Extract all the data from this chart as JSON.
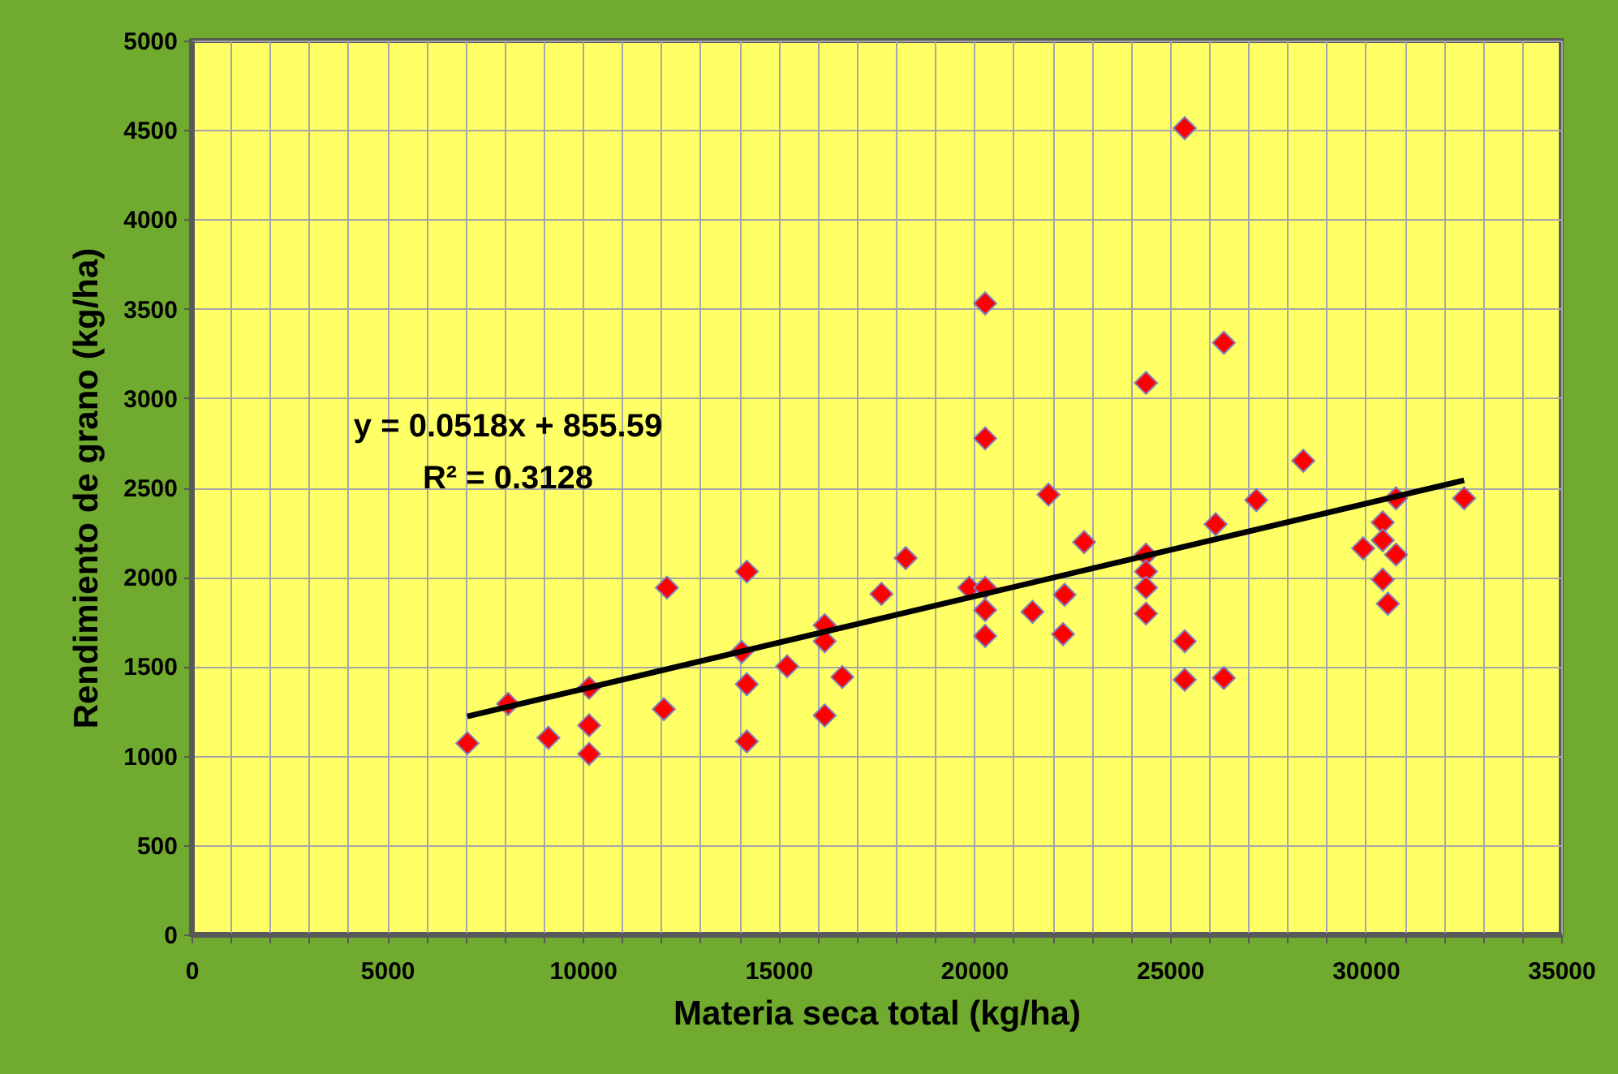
{
  "chart_data": {
    "type": "scatter",
    "xlabel": "Materia seca total (kg/ha)",
    "ylabel": "Rendimiento de grano (kg/ha)",
    "annotations": [
      "y = 0.0518x + 855.59",
      "R² = 0.3128"
    ],
    "xlim": [
      0,
      35000
    ],
    "ylim": [
      0,
      5000
    ],
    "xticks": [
      0,
      {
        "value": 1000,
        "label": null
      },
      {
        "value": 2000,
        "label": null
      },
      {
        "value": 3000,
        "label": null
      },
      {
        "value": 4000,
        "label": null
      },
      5000,
      {
        "value": 6000,
        "label": null
      },
      {
        "value": 7000,
        "label": null
      },
      {
        "value": 8000,
        "label": null
      },
      {
        "value": 9000,
        "label": null
      },
      10000,
      {
        "value": 11000,
        "label": null
      },
      {
        "value": 12000,
        "label": null
      },
      {
        "value": 13000,
        "label": null
      },
      {
        "value": 14000,
        "label": null
      },
      15000,
      {
        "value": 16000,
        "label": null
      },
      {
        "value": 17000,
        "label": null
      },
      {
        "value": 18000,
        "label": null
      },
      {
        "value": 19000,
        "label": null
      },
      20000,
      {
        "value": 21000,
        "label": null
      },
      {
        "value": 22000,
        "label": null
      },
      {
        "value": 23000,
        "label": null
      },
      {
        "value": 24000,
        "label": null
      },
      25000,
      {
        "value": 26000,
        "label": null
      },
      {
        "value": 27000,
        "label": null
      },
      {
        "value": 28000,
        "label": null
      },
      {
        "value": 29000,
        "label": null
      },
      30000,
      {
        "value": 31000,
        "label": null
      },
      {
        "value": 32000,
        "label": null
      },
      {
        "value": 33000,
        "label": null
      },
      {
        "value": 34000,
        "label": null
      },
      35000
    ],
    "yticks": [
      0,
      500,
      1000,
      1500,
      2000,
      2500,
      3000,
      3500,
      4000,
      4500,
      5000
    ],
    "grid": true,
    "marker": "diamond",
    "series": [
      {
        "color": "#ff0000",
        "x": [
          7050,
          8090,
          9120,
          10160,
          10160,
          10160,
          12070,
          12150,
          14060,
          14190,
          14190,
          14190,
          15220,
          16180,
          16180,
          16180,
          16630,
          17630,
          18250,
          19870,
          20280,
          20280,
          20280,
          20280,
          20280,
          21490,
          21900,
          22270,
          22310,
          22810,
          24390,
          24390,
          24390,
          24390,
          24390,
          25380,
          25380,
          25380,
          26380,
          26380,
          26170,
          27210,
          28410,
          29940,
          30780,
          30440,
          30440,
          30780,
          30440,
          30570,
          32520
        ],
        "values": [
          1070,
          1290,
          1100,
          1010,
          1170,
          1380,
          1260,
          1940,
          1580,
          2030,
          1400,
          1080,
          1500,
          1730,
          1640,
          1225,
          1440,
          1905,
          2105,
          1940,
          1940,
          1815,
          1670,
          2775,
          3530,
          1805,
          2460,
          1680,
          1900,
          2195,
          3085,
          2125,
          2030,
          1940,
          1795,
          4510,
          1640,
          1425,
          3310,
          1435,
          2295,
          2430,
          2650,
          2160,
          2440,
          2305,
          2205,
          2125,
          1985,
          1850,
          2440
        ]
      },
      {
        "type": "line",
        "color": "#000000",
        "marker": "none",
        "line_style": "solid",
        "x": [
          7050,
          32520
        ],
        "values": [
          1220,
          2540
        ]
      }
    ]
  }
}
